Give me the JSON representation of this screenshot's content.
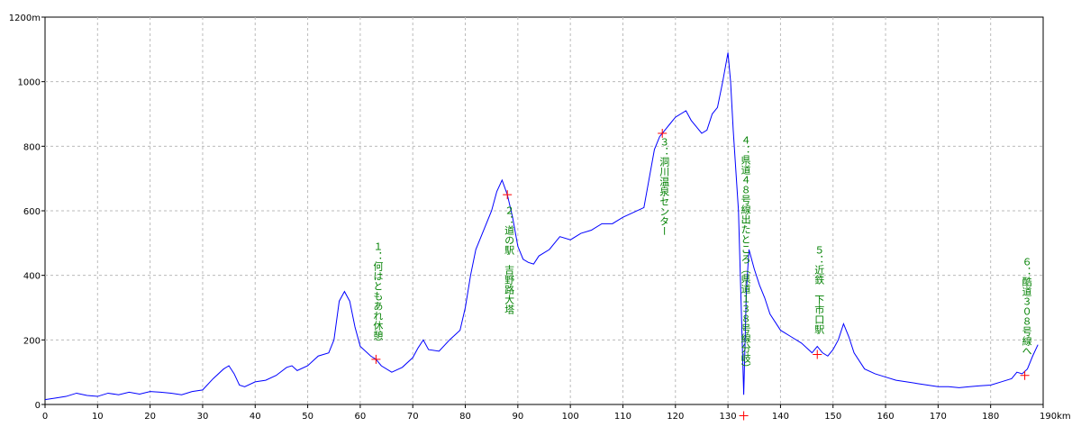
{
  "chart_data": {
    "type": "line",
    "x": [
      0,
      2,
      4,
      6,
      8,
      10,
      12,
      14,
      16,
      18,
      20,
      22,
      24,
      26,
      28,
      30,
      32,
      34,
      35,
      36,
      37,
      38,
      40,
      42,
      44,
      46,
      47,
      48,
      50,
      52,
      54,
      55,
      56,
      57,
      58,
      59,
      60,
      62,
      63,
      64,
      66,
      68,
      70,
      71,
      72,
      73,
      75,
      77,
      79,
      80,
      81,
      82,
      83,
      84,
      85,
      86,
      87,
      88,
      89,
      90,
      91,
      92,
      93,
      94,
      96,
      98,
      100,
      102,
      104,
      106,
      108,
      110,
      112,
      114,
      115,
      116,
      117,
      118,
      119,
      120,
      121,
      122,
      123,
      124,
      125,
      126,
      127,
      128,
      129,
      130,
      130.5,
      131,
      132,
      133,
      133.5,
      134,
      135,
      136,
      137,
      138,
      140,
      142,
      144,
      146,
      147,
      148,
      149,
      150,
      151,
      152,
      153,
      154,
      156,
      158,
      160,
      162,
      164,
      166,
      168,
      170,
      172,
      174,
      176,
      178,
      180,
      182,
      184,
      185,
      186,
      187,
      188,
      189
    ],
    "series": [
      {
        "color": "#0000ff",
        "values": [
          15,
          20,
          25,
          35,
          28,
          25,
          35,
          30,
          38,
          32,
          40,
          38,
          35,
          30,
          40,
          45,
          80,
          110,
          120,
          95,
          60,
          55,
          70,
          75,
          90,
          115,
          120,
          105,
          120,
          150,
          160,
          200,
          320,
          350,
          320,
          240,
          180,
          150,
          140,
          120,
          100,
          115,
          145,
          175,
          200,
          170,
          165,
          200,
          230,
          300,
          400,
          480,
          520,
          560,
          600,
          660,
          695,
          650,
          580,
          490,
          450,
          440,
          435,
          460,
          480,
          520,
          510,
          530,
          540,
          560,
          560,
          580,
          595,
          610,
          700,
          790,
          830,
          850,
          870,
          890,
          900,
          910,
          880,
          860,
          840,
          850,
          900,
          920,
          1000,
          1090,
          1000,
          850,
          600,
          30,
          350,
          480,
          420,
          370,
          330,
          280,
          230,
          210,
          190,
          160,
          180,
          160,
          150,
          170,
          200,
          250,
          210,
          160,
          110,
          95,
          85,
          75,
          70,
          65,
          60,
          55,
          55,
          52,
          55,
          58,
          60,
          70,
          80,
          100,
          95,
          110,
          150,
          185
        ]
      }
    ],
    "xlim": [
      0,
      190
    ],
    "ylim": [
      0,
      1200
    ],
    "xticks": [
      0,
      10,
      20,
      30,
      40,
      50,
      60,
      70,
      80,
      90,
      100,
      110,
      120,
      130,
      140,
      150,
      160,
      170,
      180,
      {
        "value": 190,
        "label": "190km"
      }
    ],
    "yticks": [
      0,
      200,
      400,
      600,
      800,
      1000,
      {
        "value": 1200,
        "label": "1200m"
      }
    ],
    "grid": true,
    "waypoints": {
      "color": "#ff0000",
      "label_color": "#008000",
      "x": [
        63,
        88,
        117.5,
        133,
        147,
        186.5
      ],
      "values": [
        140,
        650,
        840,
        -35,
        155,
        90
      ],
      "labels": [
        "１：何はともあれ休憩",
        "２：道の駅　吉野路大塔",
        "３：洞川温泉センター",
        "４：県道４８号線出たところ（県道１３８号線分岐）",
        "５：近鉄　下市口駅",
        "６：酷道３０８号線へ"
      ]
    }
  }
}
